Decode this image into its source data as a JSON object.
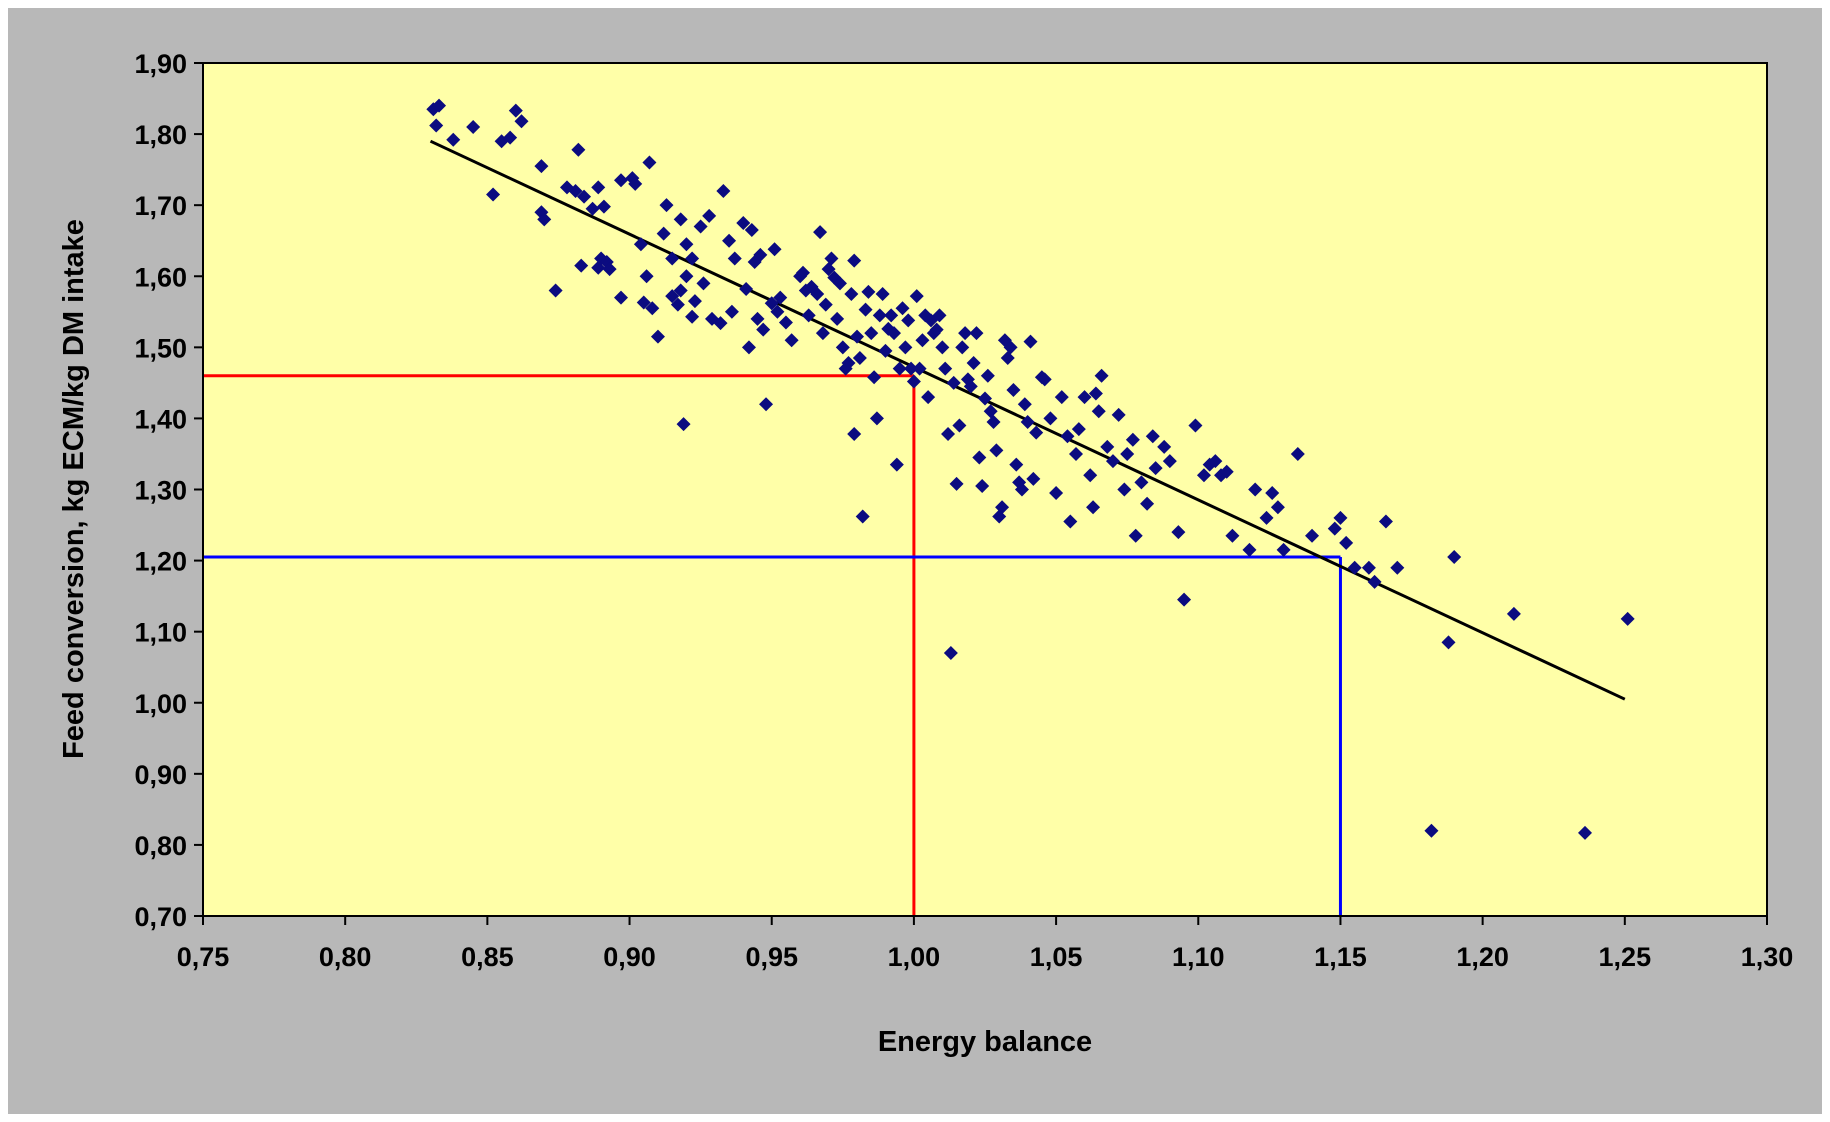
{
  "chart_data": {
    "type": "scatter",
    "title": "",
    "xlabel": "Energy balance",
    "ylabel": "Feed conversion, kg ECM/kg DM intake",
    "xlim": [
      0.75,
      1.3
    ],
    "ylim": [
      0.7,
      1.9
    ],
    "x_ticks": [
      "0,75",
      "0,80",
      "0,85",
      "0,90",
      "0,95",
      "1,00",
      "1,05",
      "1,10",
      "1,15",
      "1,20",
      "1,25",
      "1,30"
    ],
    "y_ticks": [
      "0,70",
      "0,80",
      "0,90",
      "1,00",
      "1,10",
      "1,20",
      "1,30",
      "1,40",
      "1,50",
      "1,60",
      "1,70",
      "1,80",
      "1,90"
    ],
    "grid": false,
    "legend": "none",
    "colors": {
      "background": "#b8b8b8",
      "plot_area": "#ffffa8",
      "points": "#0b0b80",
      "trendline": "#000000",
      "reference_red": "#ff0000",
      "reference_blue": "#0000ff"
    },
    "trendline": {
      "x": [
        0.83,
        1.25
      ],
      "y": [
        1.79,
        1.005
      ]
    },
    "reference_lines": [
      {
        "color": "red",
        "x": 1.0,
        "y": 1.46
      },
      {
        "color": "blue",
        "x": 1.15,
        "y": 1.205
      }
    ],
    "points": [
      [
        0.831,
        1.835
      ],
      [
        0.833,
        1.84
      ],
      [
        0.832,
        1.812
      ],
      [
        0.838,
        1.792
      ],
      [
        0.845,
        1.81
      ],
      [
        0.852,
        1.715
      ],
      [
        0.855,
        1.79
      ],
      [
        0.858,
        1.795
      ],
      [
        0.86,
        1.833
      ],
      [
        0.862,
        1.818
      ],
      [
        0.869,
        1.755
      ],
      [
        0.869,
        1.69
      ],
      [
        0.87,
        1.68
      ],
      [
        0.874,
        1.58
      ],
      [
        0.878,
        1.725
      ],
      [
        0.881,
        1.72
      ],
      [
        0.882,
        1.778
      ],
      [
        0.883,
        1.615
      ],
      [
        0.884,
        1.712
      ],
      [
        0.887,
        1.695
      ],
      [
        0.889,
        1.612
      ],
      [
        0.889,
        1.725
      ],
      [
        0.89,
        1.625
      ],
      [
        0.891,
        1.698
      ],
      [
        0.892,
        1.62
      ],
      [
        0.893,
        1.61
      ],
      [
        0.897,
        1.735
      ],
      [
        0.897,
        1.57
      ],
      [
        0.901,
        1.738
      ],
      [
        0.902,
        1.73
      ],
      [
        0.904,
        1.645
      ],
      [
        0.905,
        1.563
      ],
      [
        0.906,
        1.6
      ],
      [
        0.907,
        1.76
      ],
      [
        0.908,
        1.555
      ],
      [
        0.91,
        1.515
      ],
      [
        0.912,
        1.66
      ],
      [
        0.913,
        1.7
      ],
      [
        0.915,
        1.625
      ],
      [
        0.915,
        1.572
      ],
      [
        0.917,
        1.56
      ],
      [
        0.918,
        1.58
      ],
      [
        0.918,
        1.68
      ],
      [
        0.919,
        1.392
      ],
      [
        0.92,
        1.6
      ],
      [
        0.92,
        1.645
      ],
      [
        0.922,
        1.543
      ],
      [
        0.922,
        1.625
      ],
      [
        0.923,
        1.565
      ],
      [
        0.925,
        1.67
      ],
      [
        0.926,
        1.59
      ],
      [
        0.928,
        1.685
      ],
      [
        0.929,
        1.54
      ],
      [
        0.932,
        1.534
      ],
      [
        0.933,
        1.72
      ],
      [
        0.935,
        1.65
      ],
      [
        0.936,
        1.55
      ],
      [
        0.937,
        1.625
      ],
      [
        0.94,
        1.675
      ],
      [
        0.941,
        1.582
      ],
      [
        0.942,
        1.5
      ],
      [
        0.943,
        1.665
      ],
      [
        0.944,
        1.62
      ],
      [
        0.945,
        1.54
      ],
      [
        0.946,
        1.63
      ],
      [
        0.947,
        1.525
      ],
      [
        0.948,
        1.42
      ],
      [
        0.95,
        1.562
      ],
      [
        0.951,
        1.638
      ],
      [
        0.952,
        1.55
      ],
      [
        0.953,
        1.57
      ],
      [
        0.955,
        1.535
      ],
      [
        0.957,
        1.51
      ],
      [
        0.96,
        1.6
      ],
      [
        0.961,
        1.605
      ],
      [
        0.962,
        1.58
      ],
      [
        0.963,
        1.545
      ],
      [
        0.964,
        1.585
      ],
      [
        0.966,
        1.575
      ],
      [
        0.967,
        1.662
      ],
      [
        0.968,
        1.52
      ],
      [
        0.969,
        1.56
      ],
      [
        0.97,
        1.61
      ],
      [
        0.971,
        1.625
      ],
      [
        0.972,
        1.598
      ],
      [
        0.973,
        1.54
      ],
      [
        0.974,
        1.59
      ],
      [
        0.975,
        1.5
      ],
      [
        0.976,
        1.47
      ],
      [
        0.977,
        1.478
      ],
      [
        0.978,
        1.575
      ],
      [
        0.979,
        1.378
      ],
      [
        0.979,
        1.622
      ],
      [
        0.98,
        1.515
      ],
      [
        0.981,
        1.485
      ],
      [
        0.982,
        1.262
      ],
      [
        0.983,
        1.553
      ],
      [
        0.984,
        1.578
      ],
      [
        0.985,
        1.52
      ],
      [
        0.986,
        1.458
      ],
      [
        0.987,
        1.4
      ],
      [
        0.988,
        1.545
      ],
      [
        0.989,
        1.575
      ],
      [
        0.99,
        1.495
      ],
      [
        0.991,
        1.526
      ],
      [
        0.992,
        1.545
      ],
      [
        0.993,
        1.52
      ],
      [
        0.994,
        1.335
      ],
      [
        0.995,
        1.47
      ],
      [
        0.996,
        1.555
      ],
      [
        0.997,
        1.5
      ],
      [
        0.998,
        1.538
      ],
      [
        0.999,
        1.47
      ],
      [
        1.0,
        1.452
      ],
      [
        1.001,
        1.572
      ],
      [
        1.002,
        1.47
      ],
      [
        1.003,
        1.51
      ],
      [
        1.004,
        1.545
      ],
      [
        1.005,
        1.43
      ],
      [
        1.006,
        1.538
      ],
      [
        1.007,
        1.52
      ],
      [
        1.008,
        1.525
      ],
      [
        1.009,
        1.545
      ],
      [
        1.01,
        1.5
      ],
      [
        1.011,
        1.47
      ],
      [
        1.012,
        1.378
      ],
      [
        1.013,
        1.07
      ],
      [
        1.014,
        1.45
      ],
      [
        1.015,
        1.308
      ],
      [
        1.016,
        1.39
      ],
      [
        1.017,
        1.5
      ],
      [
        1.018,
        1.52
      ],
      [
        1.019,
        1.455
      ],
      [
        1.02,
        1.445
      ],
      [
        1.021,
        1.478
      ],
      [
        1.022,
        1.52
      ],
      [
        1.023,
        1.345
      ],
      [
        1.024,
        1.305
      ],
      [
        1.025,
        1.428
      ],
      [
        1.026,
        1.46
      ],
      [
        1.027,
        1.41
      ],
      [
        1.028,
        1.395
      ],
      [
        1.029,
        1.355
      ],
      [
        1.03,
        1.262
      ],
      [
        1.031,
        1.275
      ],
      [
        1.032,
        1.51
      ],
      [
        1.033,
        1.485
      ],
      [
        1.034,
        1.5
      ],
      [
        1.035,
        1.44
      ],
      [
        1.036,
        1.335
      ],
      [
        1.037,
        1.31
      ],
      [
        1.038,
        1.3
      ],
      [
        1.039,
        1.42
      ],
      [
        1.04,
        1.395
      ],
      [
        1.041,
        1.508
      ],
      [
        1.042,
        1.315
      ],
      [
        1.043,
        1.38
      ],
      [
        1.045,
        1.458
      ],
      [
        1.046,
        1.455
      ],
      [
        1.048,
        1.4
      ],
      [
        1.05,
        1.295
      ],
      [
        1.052,
        1.43
      ],
      [
        1.054,
        1.375
      ],
      [
        1.055,
        1.255
      ],
      [
        1.057,
        1.35
      ],
      [
        1.058,
        1.385
      ],
      [
        1.06,
        1.43
      ],
      [
        1.062,
        1.32
      ],
      [
        1.063,
        1.275
      ],
      [
        1.064,
        1.435
      ],
      [
        1.065,
        1.41
      ],
      [
        1.066,
        1.46
      ],
      [
        1.068,
        1.36
      ],
      [
        1.07,
        1.34
      ],
      [
        1.072,
        1.405
      ],
      [
        1.074,
        1.3
      ],
      [
        1.075,
        1.35
      ],
      [
        1.077,
        1.37
      ],
      [
        1.078,
        1.235
      ],
      [
        1.08,
        1.31
      ],
      [
        1.082,
        1.28
      ],
      [
        1.084,
        1.375
      ],
      [
        1.085,
        1.33
      ],
      [
        1.088,
        1.36
      ],
      [
        1.09,
        1.34
      ],
      [
        1.093,
        1.24
      ],
      [
        1.095,
        1.145
      ],
      [
        1.099,
        1.39
      ],
      [
        1.102,
        1.32
      ],
      [
        1.104,
        1.335
      ],
      [
        1.106,
        1.34
      ],
      [
        1.108,
        1.32
      ],
      [
        1.11,
        1.325
      ],
      [
        1.112,
        1.235
      ],
      [
        1.118,
        1.215
      ],
      [
        1.12,
        1.3
      ],
      [
        1.124,
        1.26
      ],
      [
        1.126,
        1.295
      ],
      [
        1.128,
        1.275
      ],
      [
        1.13,
        1.215
      ],
      [
        1.135,
        1.35
      ],
      [
        1.14,
        1.235
      ],
      [
        1.148,
        1.245
      ],
      [
        1.15,
        1.26
      ],
      [
        1.152,
        1.225
      ],
      [
        1.155,
        1.19
      ],
      [
        1.16,
        1.19
      ],
      [
        1.162,
        1.17
      ],
      [
        1.166,
        1.255
      ],
      [
        1.17,
        1.19
      ],
      [
        1.182,
        0.82
      ],
      [
        1.188,
        1.085
      ],
      [
        1.19,
        1.205
      ],
      [
        1.211,
        1.125
      ],
      [
        1.236,
        0.817
      ],
      [
        1.251,
        1.118
      ]
    ]
  }
}
